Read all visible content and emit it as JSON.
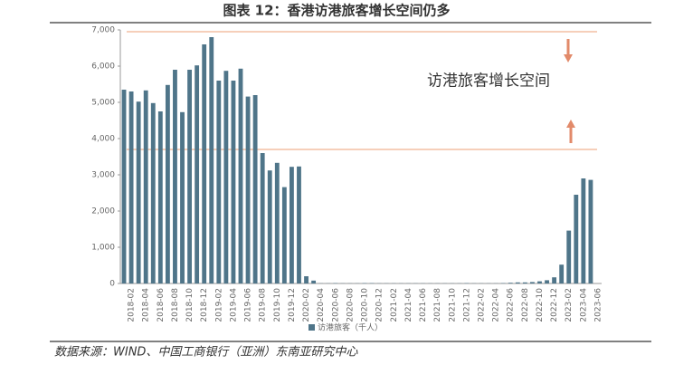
{
  "chart_data": {
    "type": "bar",
    "title": "图表 12：香港访港旅客增长空间仍多",
    "source": "数据来源：WIND、中国工商银行（亚洲）东南亚研究中心",
    "annotation": "访港旅客增长空间",
    "categories": [
      null,
      "2018-02",
      null,
      "2018-04",
      null,
      "2018-06",
      null,
      "2018-08",
      null,
      "2018-10",
      null,
      "2018-12",
      null,
      "2019-02",
      null,
      "2019-04",
      null,
      "2019-06",
      null,
      "2019-08",
      null,
      "2019-10",
      null,
      "2019-12",
      null,
      "2020-02",
      null,
      "2020-04",
      null,
      "2020-06",
      null,
      "2020-08",
      null,
      "2020-10",
      null,
      "2020-12",
      null,
      "2021-02",
      null,
      "2021-04",
      null,
      "2021-06",
      null,
      "2021-08",
      null,
      "2021-10",
      null,
      "2021-12",
      null,
      "2022-02",
      null,
      "2022-04",
      null,
      "2022-06",
      null,
      "2022-08",
      null,
      "2022-10",
      null,
      "2022-12",
      null,
      "2023-02",
      null,
      "2023-04",
      null,
      "2023-06"
    ],
    "series": [
      {
        "name": "访港旅客（千人）",
        "color": "#4f7589",
        "values": [
          5350,
          5300,
          5020,
          5330,
          4980,
          4750,
          5480,
          5900,
          4730,
          5900,
          6020,
          6600,
          6800,
          5600,
          5870,
          5600,
          5930,
          5160,
          5200,
          3600,
          3120,
          3330,
          2660,
          3220,
          3230,
          200,
          80,
          5,
          5,
          10,
          5,
          5,
          5,
          10,
          10,
          5,
          5,
          5,
          5,
          5,
          5,
          5,
          5,
          5,
          5,
          5,
          5,
          10,
          5,
          5,
          5,
          5,
          10,
          20,
          30,
          30,
          40,
          60,
          90,
          170,
          520,
          1460,
          2450,
          2900,
          2860,
          null
        ]
      }
    ],
    "reference_lines": [
      6950,
      3700
    ],
    "reference_color": "#f0b291",
    "ylim": [
      0,
      7000
    ],
    "yticks": [
      0,
      {
        "value": 1000,
        "label": "1,000"
      },
      {
        "value": 2000,
        "label": "2,000"
      },
      {
        "value": 3000,
        "label": "3,000"
      },
      {
        "value": 4000,
        "label": "4,000"
      },
      {
        "value": 5000,
        "label": "5,000"
      },
      {
        "value": 6000,
        "label": "6,000"
      },
      {
        "value": 7000,
        "label": "7,000"
      }
    ]
  }
}
